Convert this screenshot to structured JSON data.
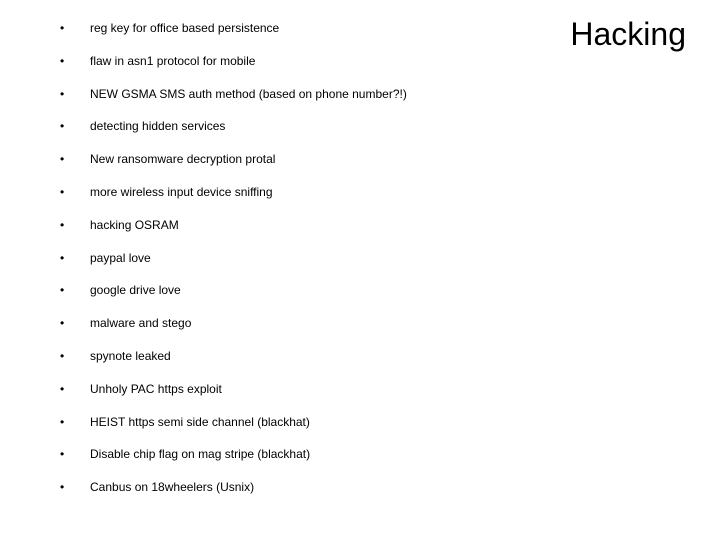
{
  "slide": {
    "title": "Hacking",
    "title_fontsize": 32,
    "title_color": "#000000",
    "background_color": "#ffffff",
    "bullet_fontsize": 12,
    "bullet_color": "#000000",
    "bullet_marker": "•",
    "bullets": [
      "reg key for office based persistence",
      "flaw in asn1 protocol for mobile",
      "NEW GSMA SMS auth method (based on phone number?!)",
      "detecting hidden services",
      "New ransomware decryption protal",
      "more wireless input device sniffing",
      "hacking OSRAM",
      "paypal love",
      "google drive love",
      "malware and stego",
      "spynote leaked",
      "Unholy PAC https exploit",
      "HEIST https semi side channel (blackhat)",
      "Disable chip flag on mag stripe (blackhat)",
      "Canbus on 18wheelers (Usnix)"
    ]
  }
}
